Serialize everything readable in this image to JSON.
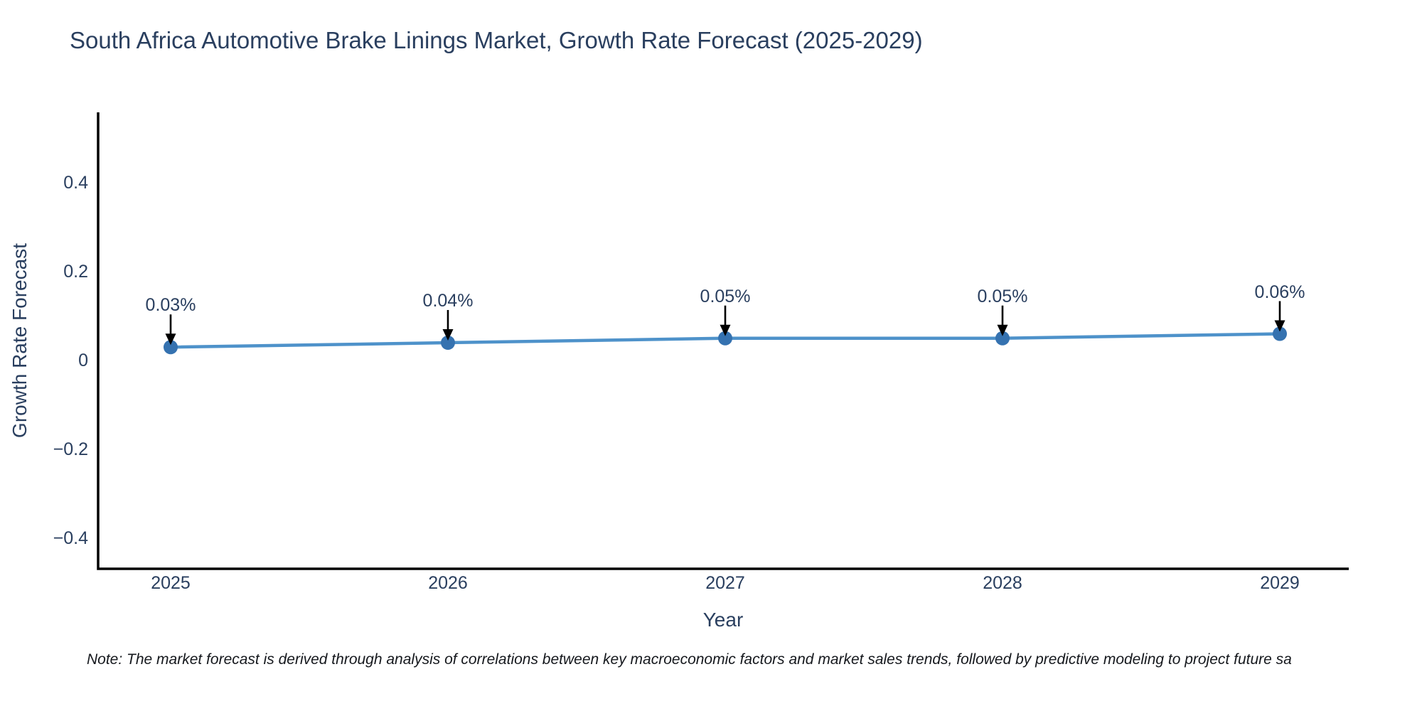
{
  "chart_data": {
    "type": "line",
    "title": "South Africa Automotive Brake Linings Market, Growth Rate Forecast (2025-2029)",
    "xlabel": "Year",
    "ylabel": "Growth Rate Forecast",
    "x": [
      2025,
      2026,
      2027,
      2028,
      2029
    ],
    "categories": [
      "2025",
      "2026",
      "2027",
      "2028",
      "2029"
    ],
    "values": [
      0.03,
      0.04,
      0.05,
      0.05,
      0.06
    ],
    "point_labels": [
      "0.03%",
      "0.04%",
      "0.05%",
      "0.05%",
      "0.06%"
    ],
    "yticks": [
      0.4,
      0.2,
      0,
      -0.2,
      -0.4
    ],
    "ytick_labels": [
      "0.4",
      "0.2",
      "0",
      "−0.2",
      "−0.4"
    ],
    "ylim": [
      -0.47,
      0.555
    ],
    "grid": false,
    "legend": "none",
    "annotations": "black down-arrows from each value label to its data point",
    "colors": {
      "line": "#4e92ca",
      "marker": "#3572b0",
      "axis": "#000000",
      "arrow": "#000000",
      "text": "#2a3f5f",
      "note_text": "#15181d",
      "background": "#ffffff"
    }
  },
  "note": "Note: The market forecast is derived through analysis of correlations between key macroeconomic factors and market sales trends, followed by predictive modeling to project future sa"
}
